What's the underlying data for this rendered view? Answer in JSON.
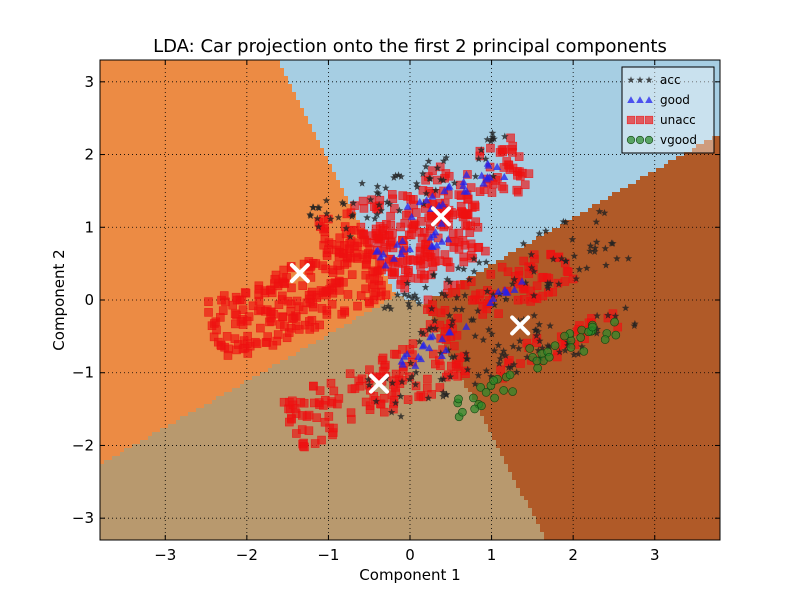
{
  "chart_data": {
    "type": "scatter",
    "title": "LDA: Car projection onto the first 2 principal components",
    "xlabel": "Component 1",
    "ylabel": "Component 2",
    "xlim": [
      -3.8,
      3.8
    ],
    "ylim": [
      -3.3,
      3.3
    ],
    "xticks": [
      "−3",
      "−2",
      "−1",
      "0",
      "1",
      "2",
      "3"
    ],
    "yticks": [
      "−3",
      "−2",
      "−1",
      "0",
      "1",
      "2",
      "3"
    ],
    "grid": true,
    "legend_position": "top-right",
    "regions": [
      {
        "name": "acc",
        "color": "#a6cee3"
      },
      {
        "name": "good",
        "color": "#b8996e"
      },
      {
        "name": "unacc",
        "color": "#ec8b44"
      },
      {
        "name": "vgood",
        "color": "#b05a28"
      }
    ],
    "centroids": [
      {
        "x": 0.38,
        "y": 1.15
      },
      {
        "x": -1.35,
        "y": 0.37
      },
      {
        "x": 1.35,
        "y": -0.35
      },
      {
        "x": -0.38,
        "y": -1.15
      }
    ],
    "series": [
      {
        "name": "acc",
        "marker": "star",
        "color": "#222222",
        "clusters": [
          {
            "cx": 1.1,
            "cy": 0.3,
            "rx": 1.6,
            "ry": 0.4,
            "angle": 24,
            "n": 90
          },
          {
            "cx": 0.6,
            "cy": -0.9,
            "rx": 1.2,
            "ry": 0.32,
            "angle": 26,
            "n": 55
          },
          {
            "cx": 0.2,
            "cy": 1.6,
            "rx": 1.2,
            "ry": 0.3,
            "angle": 26,
            "n": 45
          },
          {
            "cx": 1.9,
            "cy": -0.55,
            "rx": 0.9,
            "ry": 0.25,
            "angle": 22,
            "n": 30
          },
          {
            "cx": -0.6,
            "cy": 1.4,
            "rx": 0.7,
            "ry": 0.2,
            "angle": 26,
            "n": 20
          }
        ]
      },
      {
        "name": "good",
        "marker": "triangle",
        "color": "#2222ee",
        "clusters": [
          {
            "cx": 0.6,
            "cy": 1.55,
            "rx": 0.7,
            "ry": 0.15,
            "angle": 26,
            "n": 25
          },
          {
            "cx": 0.0,
            "cy": 0.75,
            "rx": 0.5,
            "ry": 0.15,
            "angle": 26,
            "n": 20
          },
          {
            "cx": 0.3,
            "cy": -0.65,
            "rx": 0.5,
            "ry": 0.15,
            "angle": 26,
            "n": 18
          },
          {
            "cx": 1.25,
            "cy": 0.1,
            "rx": 0.3,
            "ry": 0.1,
            "angle": 26,
            "n": 8
          }
        ]
      },
      {
        "name": "unacc",
        "marker": "square",
        "color": "#ee1111",
        "clusters": [
          {
            "cx": -0.8,
            "cy": 0.3,
            "rx": 1.8,
            "ry": 0.45,
            "angle": 26,
            "n": 360
          },
          {
            "cx": -0.4,
            "cy": -1.2,
            "rx": 1.2,
            "ry": 0.38,
            "angle": 26,
            "n": 130
          },
          {
            "cx": 0.2,
            "cy": 1.35,
            "rx": 1.4,
            "ry": 0.38,
            "angle": 26,
            "n": 140
          },
          {
            "cx": 1.0,
            "cy": 0.1,
            "rx": 1.0,
            "ry": 0.3,
            "angle": 22,
            "n": 80
          },
          {
            "cx": 1.8,
            "cy": -0.6,
            "rx": 0.8,
            "ry": 0.2,
            "angle": 22,
            "n": 30
          }
        ]
      },
      {
        "name": "vgood",
        "marker": "circle",
        "color": "#2a8a2a",
        "clusters": [
          {
            "cx": 2.0,
            "cy": -0.6,
            "rx": 0.6,
            "ry": 0.15,
            "angle": 22,
            "n": 25
          },
          {
            "cx": 0.95,
            "cy": -1.3,
            "rx": 0.45,
            "ry": 0.14,
            "angle": 26,
            "n": 18
          }
        ]
      }
    ]
  }
}
